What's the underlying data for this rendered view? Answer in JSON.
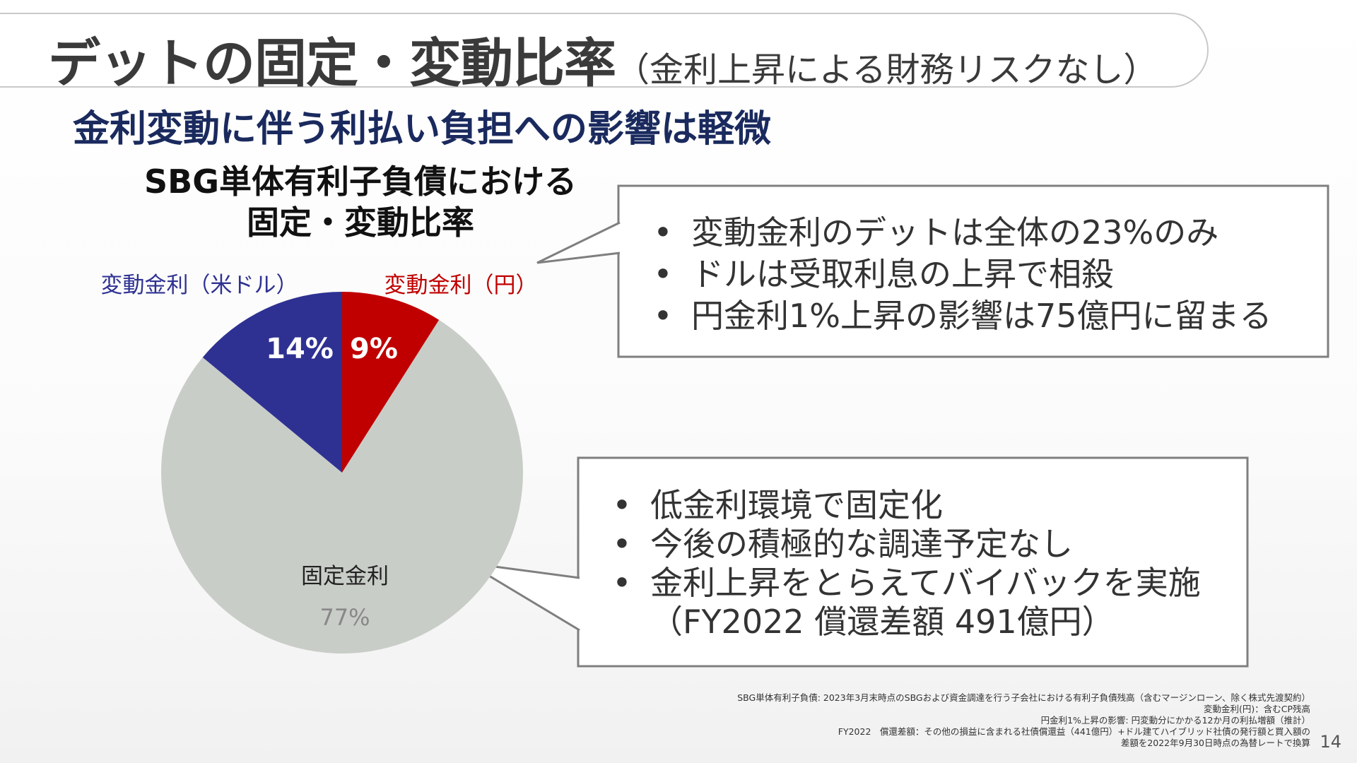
{
  "title": {
    "main": "デットの固定・変動比率",
    "sub": "（金利上昇による財務リスクなし）"
  },
  "subtitle": "金利変動に伴う利払い負担への影響は軽微",
  "chart_data": {
    "type": "pie",
    "title_lines": [
      "SBG単体有利子負債における",
      "固定・変動比率"
    ],
    "slices": [
      {
        "name": "変動金利（円）",
        "value": 9,
        "label": "9%",
        "color": "#c00000"
      },
      {
        "name": "固定金利",
        "value": 77,
        "label": "77%",
        "color": "#c9cdc8"
      },
      {
        "name": "変動金利（米ドル）",
        "value": 14,
        "label": "14%",
        "color": "#2e3192"
      }
    ],
    "start_angle_deg": 0,
    "direction": "clockwise",
    "legend_placement": "labels-outside-top"
  },
  "callouts": [
    {
      "items": [
        "変動金利のデットは全体の23%のみ",
        "ドルは受取利息の上昇で相殺",
        "円金利1%上昇の影響は75億円に留まる"
      ]
    },
    {
      "items": [
        "低金利環境で固定化",
        "今後の積極的な調達予定なし",
        "金利上昇をとらえてバイバックを実施（FY2022 償還差額 491億円）"
      ]
    }
  ],
  "bullet_symbol": "•",
  "footnotes": [
    "SBG単体有利子負債: 2023年3月末時点のSBGおよび資金調達を行う子会社における有利子負債残高（含むマージンローン、除く株式先渡契約）",
    "変動金利(円)：含むCP残高",
    "円金利1%上昇の影響: 円変動分にかかる12か月の利払増額（推計）",
    "FY2022　償還差額：その他の損益に含まれる社債償還益（441億円）+ドル建てハイブリッド社債の発行額と買入額の",
    "差額を2022年9月30日時点の為替レートで換算"
  ],
  "page_number": "14",
  "colors": {
    "title_text": "#3a3a3a",
    "subtitle_text": "#1a2a5e",
    "usd_floating": "#2e3192",
    "jpy_floating": "#c00000",
    "fixed": "#c9cdc8",
    "callout_border": "#7f7f7f"
  }
}
